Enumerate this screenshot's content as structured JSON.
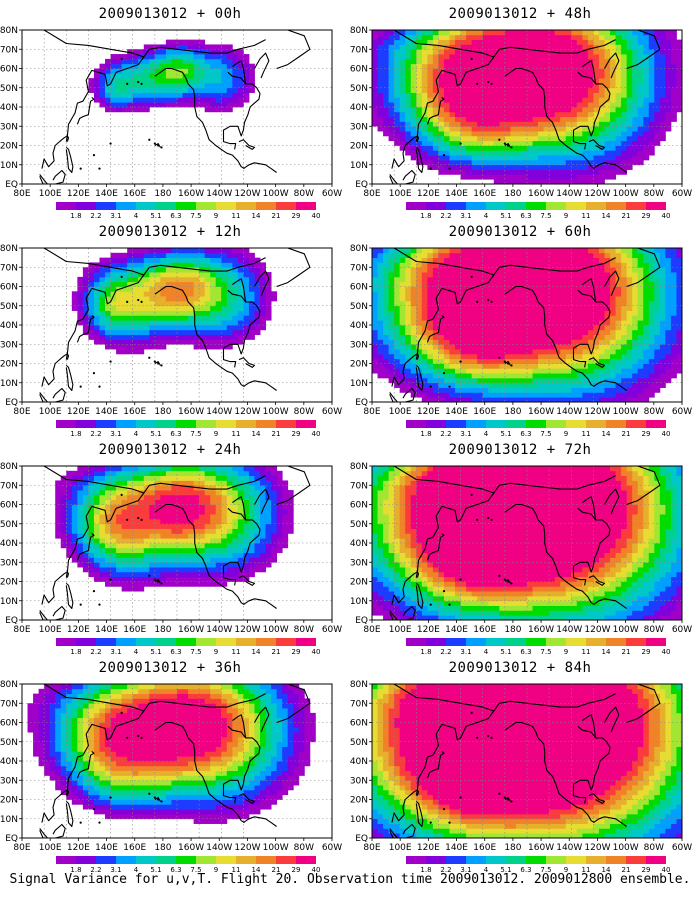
{
  "lat_ticks": [
    "80N",
    "70N",
    "60N",
    "50N",
    "40N",
    "30N",
    "20N",
    "10N",
    "EQ"
  ],
  "lon_ticks": [
    "80E",
    "100E",
    "120E",
    "140E",
    "160E",
    "180",
    "160W",
    "140W",
    "120W",
    "100W",
    "80W",
    "60W"
  ],
  "colorbar": {
    "labels": [
      "1.8",
      "2.2",
      "3.1",
      "4",
      "5.1",
      "6.3",
      "7.5",
      "9",
      "11",
      "14",
      "21",
      "29",
      "40"
    ],
    "colors": [
      "#a000c8",
      "#8200dc",
      "#1e3cff",
      "#00a0ff",
      "#00c8c8",
      "#00d28c",
      "#00dc00",
      "#a0e632",
      "#e6dc32",
      "#e6af2d",
      "#f08228",
      "#fa3c3c",
      "#f00082"
    ]
  },
  "panels": [
    {
      "id": "00h",
      "title": "2009013012 + 00h",
      "level": 0
    },
    {
      "id": "48h",
      "title": "2009013012 + 48h",
      "level": 4
    },
    {
      "id": "12h",
      "title": "2009013012 + 12h",
      "level": 1
    },
    {
      "id": "60h",
      "title": "2009013012 + 60h",
      "level": 5
    },
    {
      "id": "24h",
      "title": "2009013012 + 24h",
      "level": 2
    },
    {
      "id": "72h",
      "title": "2009013012 + 72h",
      "level": 6
    },
    {
      "id": "36h",
      "title": "2009013012 + 36h",
      "level": 3
    },
    {
      "id": "84h",
      "title": "2009013012 + 84h",
      "level": 7
    }
  ],
  "caption": "Signal Variance for u,v,T. Flight 20. Observation time 2009013012. 2009012800 ensemble."
}
